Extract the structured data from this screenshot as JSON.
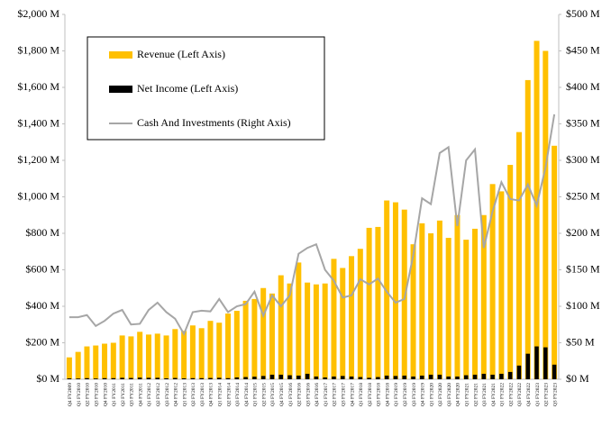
{
  "chart_data": {
    "type": "bar",
    "categories": [
      "Q4 FY2009",
      "Q1 FY2010",
      "Q2 FY2010",
      "Q3 FY2010",
      "Q4 FY2010",
      "Q1 FY2011",
      "Q2 FY2011",
      "Q3 FY2011",
      "Q4 FY2011",
      "Q1 FY2012",
      "Q2 FY2012",
      "Q3 FY2012",
      "Q4 FY2012",
      "Q1 FY2013",
      "Q2 FY2013",
      "Q3 FY2013",
      "Q4 FY2013",
      "Q1 FY2014",
      "Q2 FY2014",
      "Q3 FY2014",
      "Q4 FY2014",
      "Q1 FY2015",
      "Q2 FY2015",
      "Q3 FY2015",
      "Q4 FY2015",
      "Q1 FY2016",
      "Q2 FY2016",
      "Q3 FY2016",
      "Q4 FY2016",
      "Q1 FY2017",
      "Q2 FY2017",
      "Q3 FY2017",
      "Q4 FY2017",
      "Q1 FY2018",
      "Q2 FY2018",
      "Q3 FY2018",
      "Q4 FY2018",
      "Q1 FY2019",
      "Q2 FY2019",
      "Q3 FY2019",
      "Q4 FY2019",
      "Q1 FY2020",
      "Q2 FY2020",
      "Q3 FY2020",
      "Q4 FY2020",
      "Q1 FY2021",
      "Q2 FY2021",
      "Q3 FY2021",
      "Q4 FY2021",
      "Q1 FY2022",
      "Q2 FY2022",
      "Q3 FY2022",
      "Q4 FY2022",
      "Q1 FY2023",
      "Q2 FY2023",
      "Q3 FY2023"
    ],
    "series": [
      {
        "name": "Revenue (Left Axis)",
        "color": "#FFC000",
        "values": [
          120,
          150,
          180,
          185,
          195,
          200,
          240,
          235,
          260,
          245,
          250,
          240,
          275,
          265,
          295,
          280,
          320,
          310,
          360,
          375,
          430,
          440,
          500,
          470,
          570,
          525,
          640,
          530,
          520,
          525,
          660,
          610,
          675,
          715,
          830,
          835,
          980,
          970,
          930,
          740,
          855,
          800,
          870,
          775,
          900,
          765,
          825,
          900,
          1070,
          1030,
          1175,
          1355,
          1640,
          1855,
          1800,
          1280
        ]
      },
      {
        "name": "Net Income (Left Axis)",
        "color": "#000000",
        "values": [
          5,
          4,
          6,
          4,
          6,
          6,
          8,
          7,
          9,
          8,
          8,
          5,
          7,
          5,
          6,
          6,
          7,
          8,
          6,
          10,
          12,
          14,
          18,
          25,
          25,
          22,
          20,
          30,
          15,
          10,
          15,
          18,
          15,
          12,
          8,
          12,
          20,
          18,
          20,
          15,
          20,
          25,
          25,
          15,
          15,
          22,
          25,
          30,
          25,
          30,
          40,
          75,
          140,
          180,
          175,
          80
        ]
      },
      {
        "name": "Cash And Investments (Right Axis)",
        "color": "#A6A6A6",
        "axis": "y2",
        "type": "line",
        "values": [
          85,
          85,
          88,
          73,
          80,
          90,
          95,
          75,
          76,
          95,
          105,
          92,
          83,
          62,
          92,
          94,
          93,
          110,
          92,
          100,
          103,
          120,
          87,
          115,
          100,
          115,
          172,
          180,
          185,
          150,
          135,
          112,
          115,
          137,
          130,
          138,
          120,
          105,
          110,
          170,
          248,
          240,
          310,
          318,
          210,
          300,
          315,
          180,
          230,
          270,
          247,
          245,
          267,
          238,
          290,
          363
        ]
      }
    ],
    "ylim": [
      0,
      2000
    ],
    "yticks": [
      {
        "value": 0,
        "label": "$0 M"
      },
      {
        "value": 200,
        "label": "$200 M"
      },
      {
        "value": 400,
        "label": "$400 M"
      },
      {
        "value": 600,
        "label": "$600 M"
      },
      {
        "value": 800,
        "label": "$800 M"
      },
      {
        "value": 1000,
        "label": "$1,000 M"
      },
      {
        "value": 1200,
        "label": "$1,200 M"
      },
      {
        "value": 1400,
        "label": "$1,400 M"
      },
      {
        "value": 1600,
        "label": "$1,600 M"
      },
      {
        "value": 1800,
        "label": "$1,800 M"
      },
      {
        "value": 2000,
        "label": "$2,000 M"
      }
    ],
    "y2lim": [
      0,
      500
    ],
    "y2ticks": [
      {
        "value": 0,
        "label": "$0 M"
      },
      {
        "value": 50,
        "label": "$50 M"
      },
      {
        "value": 100,
        "label": "$100 M"
      },
      {
        "value": 150,
        "label": "$150 M"
      },
      {
        "value": 200,
        "label": "$200 M"
      },
      {
        "value": 250,
        "label": "$250 M"
      },
      {
        "value": 300,
        "label": "$300 M"
      },
      {
        "value": 350,
        "label": "$350 M"
      },
      {
        "value": 400,
        "label": "$400 M"
      },
      {
        "value": 450,
        "label": "$450 M"
      },
      {
        "value": 500,
        "label": "$500 M"
      }
    ],
    "legend": "upper left"
  }
}
